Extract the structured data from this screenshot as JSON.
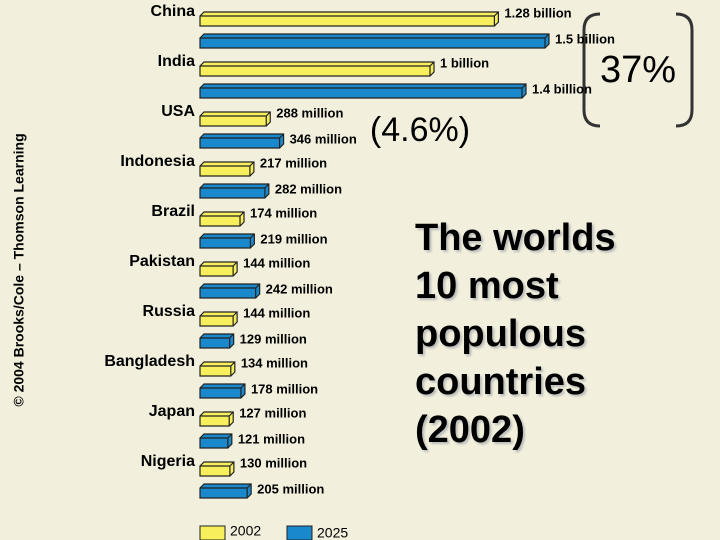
{
  "chart_data": {
    "type": "bar",
    "orientation": "horizontal",
    "title": "The worlds 10 most populous countries (2002)",
    "credit": "© 2004 Brooks/Cole – Thomson Learning",
    "categories": [
      "China",
      "India",
      "USA",
      "Indonesia",
      "Brazil",
      "Pakistan",
      "Russia",
      "Bangladesh",
      "Japan",
      "Nigeria"
    ],
    "series": [
      {
        "name": "2002",
        "color": "#f7f05c",
        "values": [
          1280,
          1000,
          288,
          217,
          174,
          144,
          144,
          134,
          127,
          130
        ],
        "value_labels": [
          "1.28 billion",
          "1 billion",
          "288 million",
          "217 million",
          "174 million",
          "144 million",
          "144 million",
          "134 million",
          "127 million",
          "130 million"
        ]
      },
      {
        "name": "2025",
        "color": "#1a88cc",
        "values": [
          1500,
          1400,
          346,
          282,
          219,
          242,
          129,
          178,
          121,
          205
        ],
        "value_labels": [
          "1.5 billion",
          "1.4 billion",
          "346 million",
          "282 million",
          "219 million",
          "242 million",
          "129 million",
          "178 million",
          "121 million",
          "205 million"
        ]
      }
    ],
    "annotations": [
      "(4.6%)",
      "37%"
    ]
  }
}
